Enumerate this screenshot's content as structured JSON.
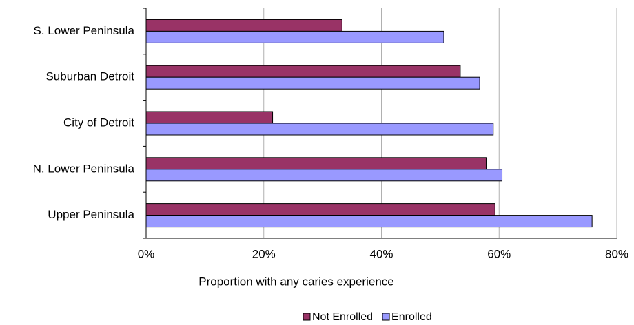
{
  "chart_data": {
    "type": "bar",
    "orientation": "horizontal",
    "x_label": "Proportion with any caries experience",
    "categories": [
      "S. Lower Peninsula",
      "Suburban Detroit",
      "City of Detroit",
      "N. Lower Peninsula",
      "Upper Peninsula"
    ],
    "series": [
      {
        "name": "Not Enrolled",
        "color": "#993366",
        "values": [
          33.3,
          53.4,
          21.5,
          57.8,
          59.3
        ]
      },
      {
        "name": "Enrolled",
        "color": "#9999ff",
        "values": [
          50.6,
          56.7,
          59.0,
          60.5,
          75.8
        ]
      }
    ],
    "xlim": [
      0,
      80
    ],
    "xticks": [
      {
        "value": 0,
        "label": "0%"
      },
      {
        "value": 20,
        "label": "20%"
      },
      {
        "value": 40,
        "label": "40%"
      },
      {
        "value": 60,
        "label": "60%"
      },
      {
        "value": 80,
        "label": "80%"
      }
    ],
    "grid": true,
    "legend": "bottom"
  }
}
